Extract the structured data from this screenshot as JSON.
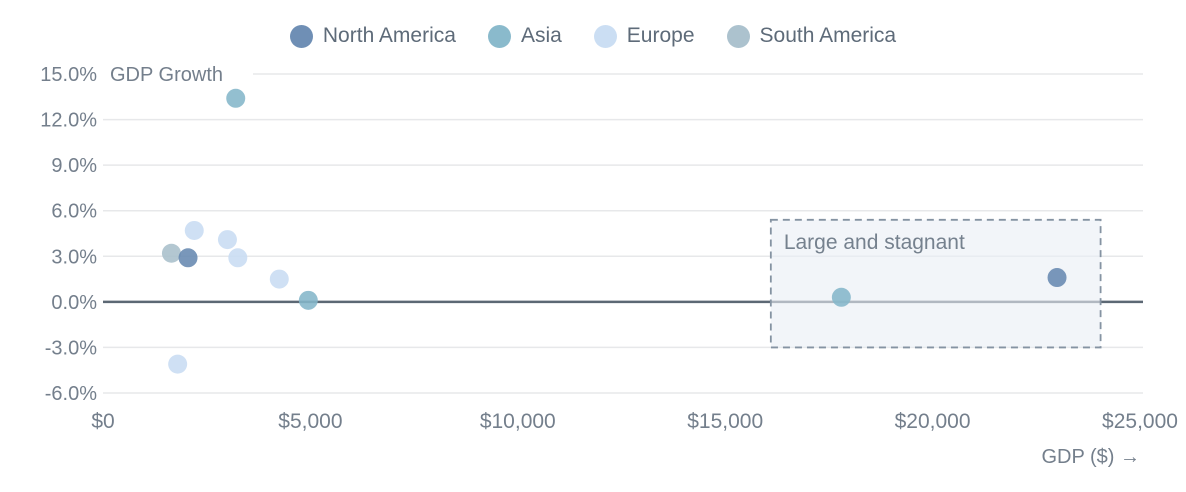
{
  "chart_data": {
    "type": "scatter",
    "title": "GDP Growth",
    "xlabel": "GDP ($) →",
    "xlim": [
      0,
      25000
    ],
    "ylim": [
      -6,
      15
    ],
    "grid": true,
    "legend_position": "top",
    "zero_line": true,
    "x_ticks": [
      {
        "value": 0,
        "label": "$0"
      },
      {
        "value": 5000,
        "label": "$5,000"
      },
      {
        "value": 10000,
        "label": "$10,000"
      },
      {
        "value": 15000,
        "label": "$15,000"
      },
      {
        "value": 20000,
        "label": "$20,000"
      },
      {
        "value": 25000,
        "label": "$25,000"
      }
    ],
    "y_ticks": [
      {
        "value": 15,
        "label": "15.0%"
      },
      {
        "value": 12,
        "label": "12.0%"
      },
      {
        "value": 9,
        "label": "9.0%"
      },
      {
        "value": 6,
        "label": "6.0%"
      },
      {
        "value": 3,
        "label": "3.0%"
      },
      {
        "value": 0,
        "label": "0.0%"
      },
      {
        "value": -3,
        "label": "-3.0%"
      },
      {
        "value": -6,
        "label": "-6.0%"
      }
    ],
    "series": [
      {
        "name": "Europe",
        "color": "#c8dcf2",
        "points": [
          {
            "gdp": 2200,
            "growth": 4.7
          },
          {
            "gdp": 3000,
            "growth": 4.1
          },
          {
            "gdp": 3250,
            "growth": 2.9
          },
          {
            "gdp": 4250,
            "growth": 1.5
          },
          {
            "gdp": 1800,
            "growth": -4.1
          }
        ]
      },
      {
        "name": "South America",
        "color": "#a8bfcb",
        "points": [
          {
            "gdp": 1650,
            "growth": 3.2
          }
        ]
      },
      {
        "name": "North America",
        "color": "#6789b1",
        "points": [
          {
            "gdp": 2050,
            "growth": 2.9
          },
          {
            "gdp": 23000,
            "growth": 1.6
          }
        ]
      },
      {
        "name": "Asia",
        "color": "#84b6c9",
        "points": [
          {
            "gdp": 3200,
            "growth": 13.4
          },
          {
            "gdp": 4950,
            "growth": 0.1
          },
          {
            "gdp": 17800,
            "growth": 0.3
          }
        ]
      }
    ],
    "legend_order": [
      "North America",
      "Asia",
      "Europe",
      "South America"
    ],
    "annotation": {
      "label": "Large and stagnant",
      "x1": 16100,
      "x2": 24050,
      "y_bottom": -3.0,
      "y_top": 5.4
    },
    "colors": {
      "grid_line": "#e7e8ea",
      "zero_line": "#5c6874",
      "tick_text": "#747f8c",
      "legend_text": "#5e6b79",
      "annotation_border": "#8593a2",
      "annotation_fill": "#e9eef5",
      "annotation_text": "#75818e"
    }
  }
}
